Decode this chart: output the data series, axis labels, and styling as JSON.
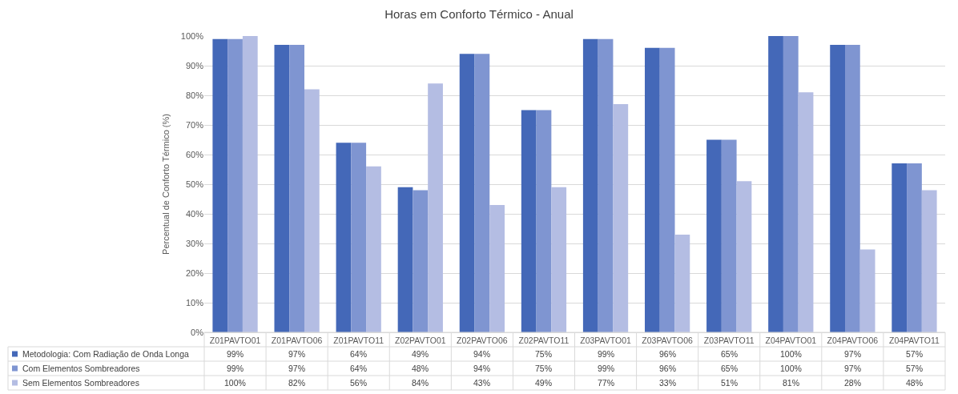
{
  "chart_data": {
    "type": "bar",
    "title": "Horas em Conforto Térmico - Anual",
    "ylabel": "Percentual de Conforto Térmico (%)",
    "categories": [
      "Z01PAVTO01",
      "Z01PAVTO06",
      "Z01PAVTO11",
      "Z02PAVTO01",
      "Z02PAVTO06",
      "Z02PAVTO11",
      "Z03PAVTO01",
      "Z03PAVTO06",
      "Z03PAVTO11",
      "Z04PAVTO01",
      "Z04PAVTO06",
      "Z04PAVTO11"
    ],
    "series": [
      {
        "name": "Metodologia: Com Radiação de Onda Longa",
        "color": "#4468b8",
        "values": [
          99,
          97,
          64,
          49,
          94,
          75,
          99,
          96,
          65,
          100,
          97,
          57
        ],
        "value_labels": [
          "99%",
          "97%",
          "64%",
          "49%",
          "94%",
          "75%",
          "99%",
          "96%",
          "65%",
          "100%",
          "97%",
          "57%"
        ]
      },
      {
        "name": "Com Elementos Sombreadores",
        "color": "#7f95d1",
        "values": [
          99,
          97,
          64,
          48,
          94,
          75,
          99,
          96,
          65,
          100,
          97,
          57
        ],
        "value_labels": [
          "99%",
          "97%",
          "64%",
          "48%",
          "94%",
          "75%",
          "99%",
          "96%",
          "65%",
          "100%",
          "97%",
          "57%"
        ]
      },
      {
        "name": "Sem Elementos Sombreadores",
        "color": "#b4bde3",
        "values": [
          100,
          82,
          56,
          84,
          43,
          49,
          77,
          33,
          51,
          81,
          28,
          48
        ],
        "value_labels": [
          "100%",
          "82%",
          "56%",
          "84%",
          "43%",
          "49%",
          "77%",
          "33%",
          "51%",
          "81%",
          "28%",
          "48%"
        ]
      }
    ],
    "ylim": [
      0,
      100
    ],
    "yticks": [
      {
        "value": 0,
        "label": "0%"
      },
      {
        "value": 10,
        "label": "10%"
      },
      {
        "value": 20,
        "label": "20%"
      },
      {
        "value": 30,
        "label": "30%"
      },
      {
        "value": 40,
        "label": "40%"
      },
      {
        "value": 50,
        "label": "50%"
      },
      {
        "value": 60,
        "label": "60%"
      },
      {
        "value": 70,
        "label": "70%"
      },
      {
        "value": 80,
        "label": "80%"
      },
      {
        "value": 90,
        "label": "90%"
      },
      {
        "value": 100,
        "label": "100%"
      }
    ],
    "grid": "y",
    "legend": "bottom"
  }
}
